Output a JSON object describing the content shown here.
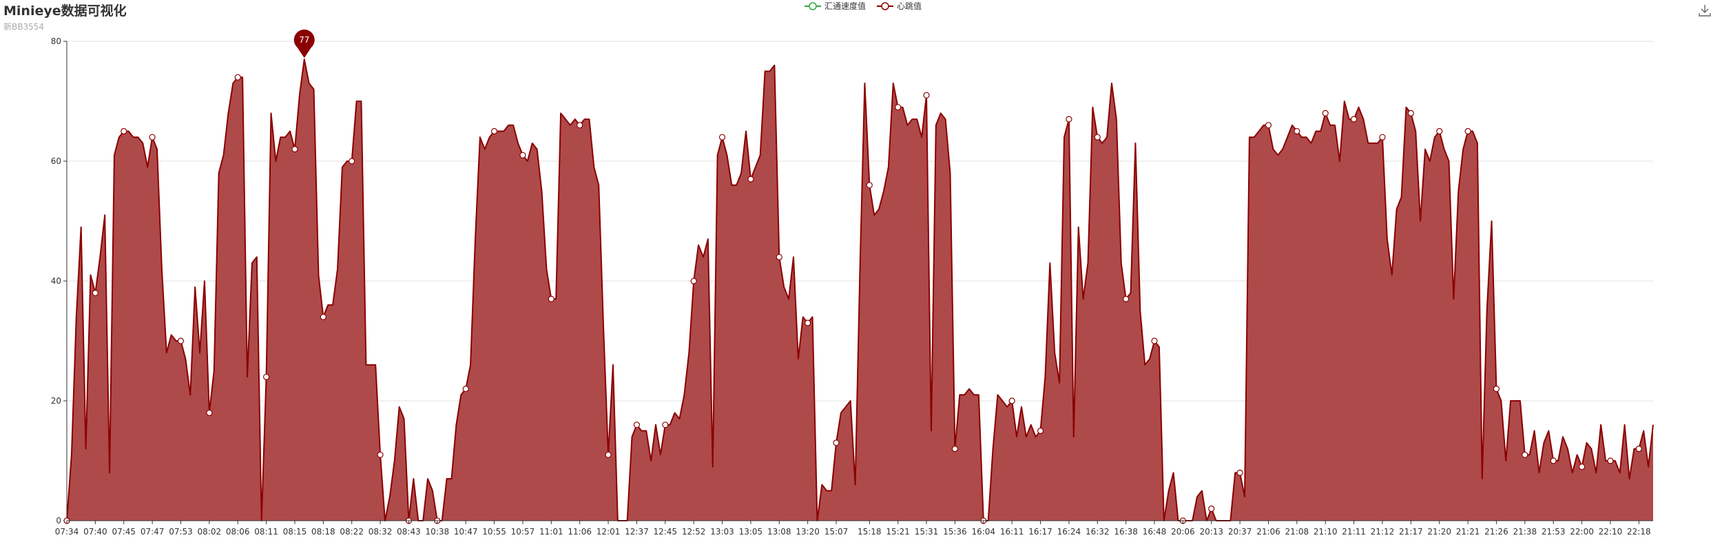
{
  "title": "Minieye数据可视化",
  "subtitle": "新BB3554",
  "legend": [
    {
      "name": "汇通速度值",
      "color": "#2eaa3c"
    },
    {
      "name": "心跳值",
      "color": "#8b0000"
    }
  ],
  "toolbox": {
    "icon": "download-icon"
  },
  "chart_data": {
    "type": "area",
    "x_tick_labels": [
      "07:34",
      "07:40",
      "07:45",
      "07:47",
      "07:53",
      "08:02",
      "08:06",
      "08:11",
      "08:15",
      "08:18",
      "08:22",
      "08:32",
      "08:43",
      "10:38",
      "10:47",
      "10:55",
      "10:57",
      "11:01",
      "11:06",
      "12:01",
      "12:37",
      "12:45",
      "12:52",
      "13:03",
      "13:05",
      "13:08",
      "13:20",
      "15:07",
      "15:18",
      "15:21",
      "15:31",
      "15:36",
      "16:04",
      "16:11",
      "16:17",
      "16:24",
      "16:32",
      "16:38",
      "16:48",
      "20:06",
      "20:13",
      "20:37",
      "21:06",
      "21:08",
      "21:10",
      "21:11",
      "21:12",
      "21:17",
      "21:20",
      "21:21",
      "21:26",
      "21:38",
      "21:53",
      "22:00",
      "22:10",
      "22:18"
    ],
    "ylim": [
      0,
      80
    ],
    "y_ticks": [
      0,
      20,
      40,
      60,
      80
    ],
    "grid": true,
    "legend_position": "top-center",
    "markpoint": {
      "label": "77",
      "value": 77
    },
    "series": [
      {
        "name": "汇通速度值",
        "color": "#2eaa3c",
        "values": []
      },
      {
        "name": "心跳值",
        "color": "#8b0000",
        "fill": "#ae4a4a",
        "values": [
          0,
          11,
          34,
          49,
          12,
          41,
          38,
          44,
          51,
          8,
          61,
          64,
          65,
          65,
          64,
          64,
          63,
          59,
          64,
          62,
          42,
          28,
          31,
          30,
          30,
          27,
          21,
          39,
          28,
          40,
          18,
          25,
          58,
          61,
          68,
          73,
          74,
          74,
          24,
          43,
          44,
          0,
          24,
          68,
          60,
          64,
          64,
          65,
          62,
          71,
          77,
          73,
          72,
          41,
          34,
          36,
          36,
          42,
          59,
          60,
          60,
          70,
          70,
          26,
          26,
          26,
          11,
          0,
          4,
          10,
          19,
          17,
          0,
          7,
          0,
          0,
          7,
          5,
          0,
          0,
          7,
          7,
          16,
          21,
          22,
          26,
          47,
          64,
          62,
          64,
          65,
          65,
          65,
          66,
          66,
          63,
          61,
          60,
          63,
          62,
          55,
          42,
          37,
          37,
          68,
          67,
          66,
          67,
          66,
          67,
          67,
          59,
          56,
          32,
          11,
          26,
          0,
          0,
          0,
          14,
          16,
          15,
          15,
          10,
          16,
          11,
          16,
          16,
          18,
          17,
          21,
          28,
          40,
          46,
          44,
          47,
          9,
          61,
          64,
          61,
          56,
          56,
          58,
          65,
          57,
          59,
          61,
          75,
          75,
          76,
          44,
          39,
          37,
          44,
          27,
          34,
          33,
          34,
          0,
          6,
          5,
          5,
          13,
          18,
          19,
          20,
          6,
          42,
          73,
          56,
          51,
          52,
          55,
          59,
          73,
          69,
          69,
          66,
          67,
          67,
          64,
          71,
          15,
          66,
          68,
          67,
          58,
          12,
          21,
          21,
          22,
          21,
          21,
          0,
          0,
          12,
          21,
          20,
          19,
          20,
          14,
          19,
          14,
          16,
          14,
          15,
          24,
          43,
          28,
          23,
          64,
          67,
          14,
          49,
          37,
          43,
          69,
          64,
          63,
          64,
          73,
          67,
          43,
          37,
          38,
          63,
          35,
          26,
          27,
          30,
          29,
          0,
          5,
          8,
          0,
          0,
          0,
          0,
          4,
          5,
          0,
          2,
          0,
          0,
          0,
          0,
          8,
          8,
          4,
          64,
          64,
          65,
          66,
          66,
          62,
          61,
          62,
          64,
          66,
          65,
          64,
          64,
          63,
          65,
          65,
          68,
          66,
          66,
          60,
          70,
          67,
          67,
          69,
          67,
          63,
          63,
          63,
          64,
          47,
          41,
          52,
          54,
          69,
          68,
          65,
          50,
          62,
          60,
          64,
          65,
          62,
          60,
          37,
          55,
          62,
          65,
          65,
          63,
          7,
          35,
          50,
          22,
          20,
          10,
          20,
          20,
          20,
          11,
          11,
          15,
          8,
          13,
          15,
          10,
          10,
          14,
          12,
          8,
          11,
          9,
          13,
          12,
          8,
          16,
          10,
          10,
          10,
          8,
          16,
          7,
          12,
          12,
          15,
          9,
          16
        ]
      }
    ]
  }
}
